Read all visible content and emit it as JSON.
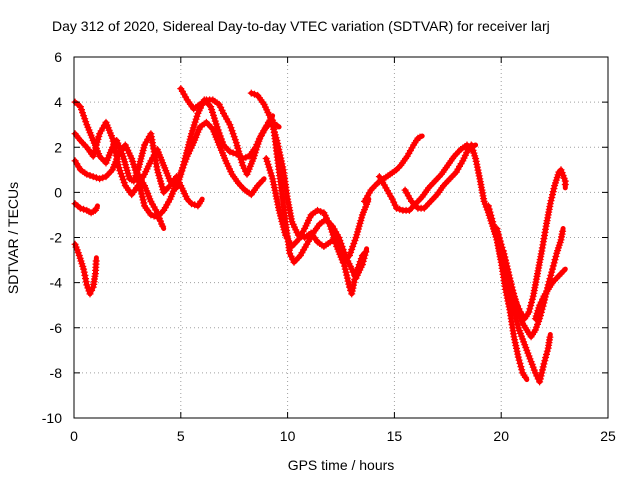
{
  "chart_data": {
    "type": "scatter",
    "title": "Day 312 of 2020, Sidereal Day-to-day VTEC variation (SDTVAR) for receiver larj",
    "xlabel": "GPS time / hours",
    "ylabel": "SDTVAR / TECUs",
    "xlim": [
      0,
      25
    ],
    "ylim": [
      -10,
      6
    ],
    "xticks": [
      0,
      5,
      10,
      15,
      20,
      25
    ],
    "yticks": [
      -10,
      -8,
      -6,
      -4,
      -2,
      0,
      2,
      4,
      6
    ],
    "grid": true,
    "marker": "+",
    "color": "#ff0000",
    "series": [
      {
        "values": [
          [
            0.05,
            -2.3
          ],
          [
            0.25,
            -2.8
          ],
          [
            0.45,
            -3.4
          ],
          [
            0.6,
            -4.1
          ],
          [
            0.75,
            -4.5
          ],
          [
            0.9,
            -4.2
          ],
          [
            1.0,
            -3.6
          ],
          [
            1.05,
            -2.9
          ]
        ]
      },
      {
        "values": [
          [
            0.05,
            -0.5
          ],
          [
            0.3,
            -0.7
          ],
          [
            0.6,
            -0.8
          ],
          [
            0.8,
            -0.9
          ],
          [
            1.0,
            -0.8
          ],
          [
            1.1,
            -0.6
          ]
        ]
      },
      {
        "values": [
          [
            0.05,
            4.0
          ],
          [
            0.3,
            3.8
          ],
          [
            0.6,
            3.0
          ],
          [
            0.9,
            2.3
          ],
          [
            1.2,
            1.6
          ],
          [
            1.5,
            1.3
          ],
          [
            1.8,
            2.0
          ],
          [
            2.0,
            2.3
          ],
          [
            2.3,
            1.6
          ],
          [
            2.6,
            0.6
          ],
          [
            2.8,
            0.5
          ],
          [
            3.0,
            1.0
          ],
          [
            3.3,
            2.1
          ],
          [
            3.6,
            2.6
          ],
          [
            3.9,
            1.0
          ],
          [
            4.2,
            0.0
          ],
          [
            4.5,
            0.3
          ],
          [
            4.8,
            0.7
          ],
          [
            5.0,
            0.3
          ],
          [
            5.3,
            -0.3
          ],
          [
            5.5,
            -0.5
          ],
          [
            5.8,
            -0.6
          ],
          [
            6.0,
            -0.3
          ]
        ]
      },
      {
        "values": [
          [
            0.05,
            2.6
          ],
          [
            0.3,
            2.3
          ],
          [
            0.6,
            2.0
          ],
          [
            0.9,
            1.6
          ],
          [
            1.2,
            2.6
          ],
          [
            1.5,
            3.1
          ],
          [
            1.8,
            2.4
          ],
          [
            2.1,
            1.1
          ],
          [
            2.4,
            0.3
          ],
          [
            2.7,
            -0.1
          ],
          [
            3.0,
            0.3
          ],
          [
            3.3,
            0.8
          ],
          [
            3.6,
            1.4
          ],
          [
            3.9,
            1.9
          ],
          [
            4.2,
            1.2
          ],
          [
            4.5,
            0.5
          ],
          [
            4.8,
            0.2
          ],
          [
            5.0,
            0.8
          ],
          [
            5.2,
            1.5
          ],
          [
            5.5,
            2.6
          ],
          [
            5.8,
            3.5
          ],
          [
            6.1,
            4.1
          ],
          [
            6.4,
            3.8
          ],
          [
            6.7,
            2.9
          ],
          [
            7.0,
            2.1
          ],
          [
            7.3,
            1.8
          ],
          [
            7.6,
            1.7
          ],
          [
            7.9,
            1.5
          ],
          [
            8.2,
            1.6
          ],
          [
            8.5,
            2.0
          ],
          [
            8.8,
            2.6
          ],
          [
            9.1,
            3.1
          ],
          [
            9.3,
            3.4
          ]
        ]
      },
      {
        "values": [
          [
            0.05,
            1.4
          ],
          [
            0.3,
            1.0
          ],
          [
            0.6,
            0.8
          ],
          [
            0.9,
            0.7
          ],
          [
            1.2,
            0.6
          ],
          [
            1.5,
            0.7
          ],
          [
            1.8,
            1.0
          ],
          [
            2.1,
            1.7
          ],
          [
            2.4,
            2.1
          ],
          [
            2.7,
            1.5
          ],
          [
            3.0,
            0.6
          ],
          [
            3.3,
            -0.6
          ],
          [
            3.6,
            -1.0
          ],
          [
            3.9,
            -1.1
          ],
          [
            4.2,
            -0.8
          ],
          [
            4.5,
            -0.3
          ],
          [
            4.8,
            0.4
          ],
          [
            5.1,
            1.1
          ],
          [
            5.3,
            1.6
          ],
          [
            5.6,
            2.2
          ],
          [
            5.9,
            2.9
          ],
          [
            6.2,
            3.1
          ],
          [
            6.5,
            2.8
          ],
          [
            6.8,
            2.1
          ],
          [
            7.1,
            1.4
          ],
          [
            7.4,
            0.8
          ],
          [
            7.7,
            0.4
          ],
          [
            8.0,
            0.1
          ],
          [
            8.3,
            -0.1
          ],
          [
            8.6,
            0.3
          ],
          [
            8.9,
            0.6
          ]
        ]
      },
      {
        "values": [
          [
            3.0,
            0.8
          ],
          [
            3.3,
            0.3
          ],
          [
            3.6,
            -0.4
          ],
          [
            3.9,
            -0.9
          ],
          [
            4.1,
            -1.4
          ],
          [
            4.2,
            -1.6
          ]
        ]
      },
      {
        "values": [
          [
            5.0,
            4.6
          ],
          [
            5.3,
            4.1
          ],
          [
            5.6,
            3.7
          ],
          [
            5.9,
            3.9
          ],
          [
            6.2,
            4.1
          ],
          [
            6.5,
            4.1
          ],
          [
            6.8,
            3.9
          ],
          [
            7.0,
            3.5
          ],
          [
            7.3,
            3.0
          ],
          [
            7.6,
            2.2
          ],
          [
            7.9,
            1.2
          ],
          [
            8.1,
            0.8
          ],
          [
            8.4,
            1.5
          ],
          [
            8.7,
            2.4
          ],
          [
            9.0,
            2.9
          ],
          [
            9.3,
            3.1
          ],
          [
            9.6,
            2.9
          ]
        ]
      },
      {
        "values": [
          [
            8.3,
            4.4
          ],
          [
            8.6,
            4.3
          ],
          [
            8.9,
            3.9
          ],
          [
            9.2,
            3.3
          ],
          [
            9.5,
            2.3
          ],
          [
            9.8,
            1.0
          ],
          [
            10.0,
            -0.3
          ],
          [
            10.2,
            -1.3
          ],
          [
            10.5,
            -1.9
          ],
          [
            10.8,
            -2.0
          ],
          [
            11.1,
            -1.8
          ],
          [
            11.4,
            -2.2
          ],
          [
            11.7,
            -2.4
          ],
          [
            12.0,
            -2.2
          ],
          [
            12.3,
            -2.0
          ],
          [
            12.5,
            -2.6
          ],
          [
            12.7,
            -3.4
          ],
          [
            12.9,
            -4.2
          ],
          [
            13.0,
            -4.5
          ],
          [
            13.2,
            -3.6
          ],
          [
            13.5,
            -2.8
          ],
          [
            13.7,
            -2.6
          ]
        ]
      },
      {
        "values": [
          [
            9.3,
            3.2
          ],
          [
            9.5,
            1.7
          ],
          [
            9.7,
            0.2
          ],
          [
            9.9,
            -1.3
          ],
          [
            10.1,
            -2.7
          ],
          [
            10.3,
            -3.1
          ],
          [
            10.6,
            -2.8
          ],
          [
            10.9,
            -2.3
          ],
          [
            11.2,
            -1.8
          ],
          [
            11.5,
            -1.4
          ],
          [
            11.8,
            -1.2
          ],
          [
            12.1,
            -1.5
          ],
          [
            12.4,
            -2.0
          ],
          [
            12.7,
            -2.8
          ],
          [
            13.0,
            -3.4
          ],
          [
            13.2,
            -3.8
          ],
          [
            13.5,
            -3.2
          ],
          [
            13.7,
            -2.5
          ]
        ]
      },
      {
        "values": [
          [
            9.0,
            1.5
          ],
          [
            9.3,
            0.6
          ],
          [
            9.6,
            -0.8
          ],
          [
            9.9,
            -1.9
          ],
          [
            10.2,
            -2.4
          ],
          [
            10.5,
            -2.1
          ],
          [
            10.8,
            -1.6
          ],
          [
            11.1,
            -1.0
          ],
          [
            11.4,
            -0.8
          ],
          [
            11.7,
            -0.9
          ],
          [
            12.0,
            -1.5
          ],
          [
            12.3,
            -2.4
          ],
          [
            12.6,
            -3.1
          ],
          [
            12.9,
            -2.8
          ],
          [
            13.2,
            -2.0
          ],
          [
            13.5,
            -1.0
          ],
          [
            13.8,
            -0.3
          ]
        ]
      },
      {
        "values": [
          [
            13.6,
            -0.4
          ],
          [
            13.9,
            0.1
          ],
          [
            14.2,
            0.4
          ],
          [
            14.5,
            0.6
          ],
          [
            14.8,
            0.8
          ],
          [
            15.1,
            1.0
          ],
          [
            15.3,
            1.2
          ],
          [
            15.6,
            1.6
          ],
          [
            15.9,
            2.1
          ],
          [
            16.1,
            2.4
          ],
          [
            16.3,
            2.5
          ]
        ]
      },
      {
        "values": [
          [
            14.3,
            0.7
          ],
          [
            14.6,
            0.2
          ],
          [
            14.9,
            -0.3
          ],
          [
            15.1,
            -0.7
          ],
          [
            15.4,
            -0.8
          ],
          [
            15.7,
            -0.8
          ],
          [
            16.0,
            -0.5
          ],
          [
            16.3,
            -0.2
          ],
          [
            16.6,
            0.2
          ],
          [
            16.9,
            0.5
          ],
          [
            17.2,
            0.8
          ],
          [
            17.5,
            1.2
          ],
          [
            17.8,
            1.6
          ],
          [
            18.1,
            1.9
          ],
          [
            18.4,
            2.1
          ],
          [
            18.7,
            1.8
          ]
        ]
      },
      {
        "values": [
          [
            15.5,
            0.1
          ],
          [
            15.8,
            -0.4
          ],
          [
            16.1,
            -0.7
          ],
          [
            16.4,
            -0.7
          ],
          [
            16.7,
            -0.4
          ],
          [
            17.0,
            -0.1
          ],
          [
            17.3,
            0.3
          ],
          [
            17.6,
            0.6
          ],
          [
            17.9,
            0.9
          ],
          [
            18.2,
            1.4
          ],
          [
            18.5,
            2.0
          ],
          [
            18.8,
            2.1
          ]
        ]
      },
      {
        "values": [
          [
            18.6,
            2.1
          ],
          [
            18.8,
            1.5
          ],
          [
            19.0,
            0.6
          ],
          [
            19.2,
            -0.4
          ],
          [
            19.4,
            -0.9
          ],
          [
            19.6,
            -1.5
          ],
          [
            19.8,
            -2.1
          ],
          [
            20.0,
            -3.1
          ],
          [
            20.2,
            -4.3
          ],
          [
            20.4,
            -5.2
          ],
          [
            20.6,
            -6.4
          ],
          [
            20.8,
            -7.3
          ],
          [
            21.0,
            -8.0
          ],
          [
            21.2,
            -8.3
          ]
        ]
      },
      {
        "values": [
          [
            19.4,
            -0.6
          ],
          [
            19.6,
            -1.3
          ],
          [
            19.8,
            -2.1
          ],
          [
            20.0,
            -2.9
          ],
          [
            20.2,
            -3.7
          ],
          [
            20.4,
            -4.5
          ],
          [
            20.6,
            -5.2
          ],
          [
            20.8,
            -6.0
          ],
          [
            21.0,
            -6.5
          ],
          [
            21.2,
            -7.0
          ],
          [
            21.4,
            -7.5
          ],
          [
            21.6,
            -8.0
          ],
          [
            21.8,
            -8.4
          ],
          [
            22.0,
            -7.6
          ],
          [
            22.2,
            -6.9
          ],
          [
            22.3,
            -6.3
          ]
        ]
      },
      {
        "values": [
          [
            19.8,
            -1.6
          ],
          [
            20.0,
            -2.3
          ],
          [
            20.2,
            -3.0
          ],
          [
            20.4,
            -3.8
          ],
          [
            20.6,
            -4.6
          ],
          [
            20.8,
            -5.2
          ],
          [
            21.0,
            -5.8
          ],
          [
            21.2,
            -6.1
          ],
          [
            21.4,
            -6.4
          ],
          [
            21.6,
            -6.1
          ],
          [
            21.8,
            -5.6
          ],
          [
            22.0,
            -4.9
          ],
          [
            22.2,
            -4.1
          ],
          [
            22.4,
            -3.4
          ],
          [
            22.6,
            -2.7
          ],
          [
            22.8,
            -2.1
          ],
          [
            22.9,
            -1.6
          ]
        ]
      },
      {
        "values": [
          [
            20.1,
            -2.6
          ],
          [
            20.3,
            -3.4
          ],
          [
            20.5,
            -4.2
          ],
          [
            20.7,
            -4.9
          ],
          [
            20.9,
            -5.3
          ],
          [
            21.1,
            -5.6
          ],
          [
            21.3,
            -5.3
          ],
          [
            21.5,
            -4.6
          ],
          [
            21.7,
            -3.6
          ],
          [
            21.9,
            -2.6
          ],
          [
            22.1,
            -1.5
          ],
          [
            22.3,
            -0.5
          ],
          [
            22.5,
            0.3
          ],
          [
            22.7,
            0.9
          ],
          [
            22.8,
            1.0
          ],
          [
            23.0,
            0.5
          ],
          [
            23.0,
            0.2
          ]
        ]
      },
      {
        "values": [
          [
            21.6,
            -5.6
          ],
          [
            21.8,
            -5.0
          ],
          [
            22.0,
            -4.6
          ],
          [
            22.2,
            -4.3
          ],
          [
            22.4,
            -4.0
          ],
          [
            22.6,
            -3.8
          ],
          [
            22.8,
            -3.6
          ],
          [
            23.0,
            -3.4
          ]
        ]
      }
    ]
  }
}
